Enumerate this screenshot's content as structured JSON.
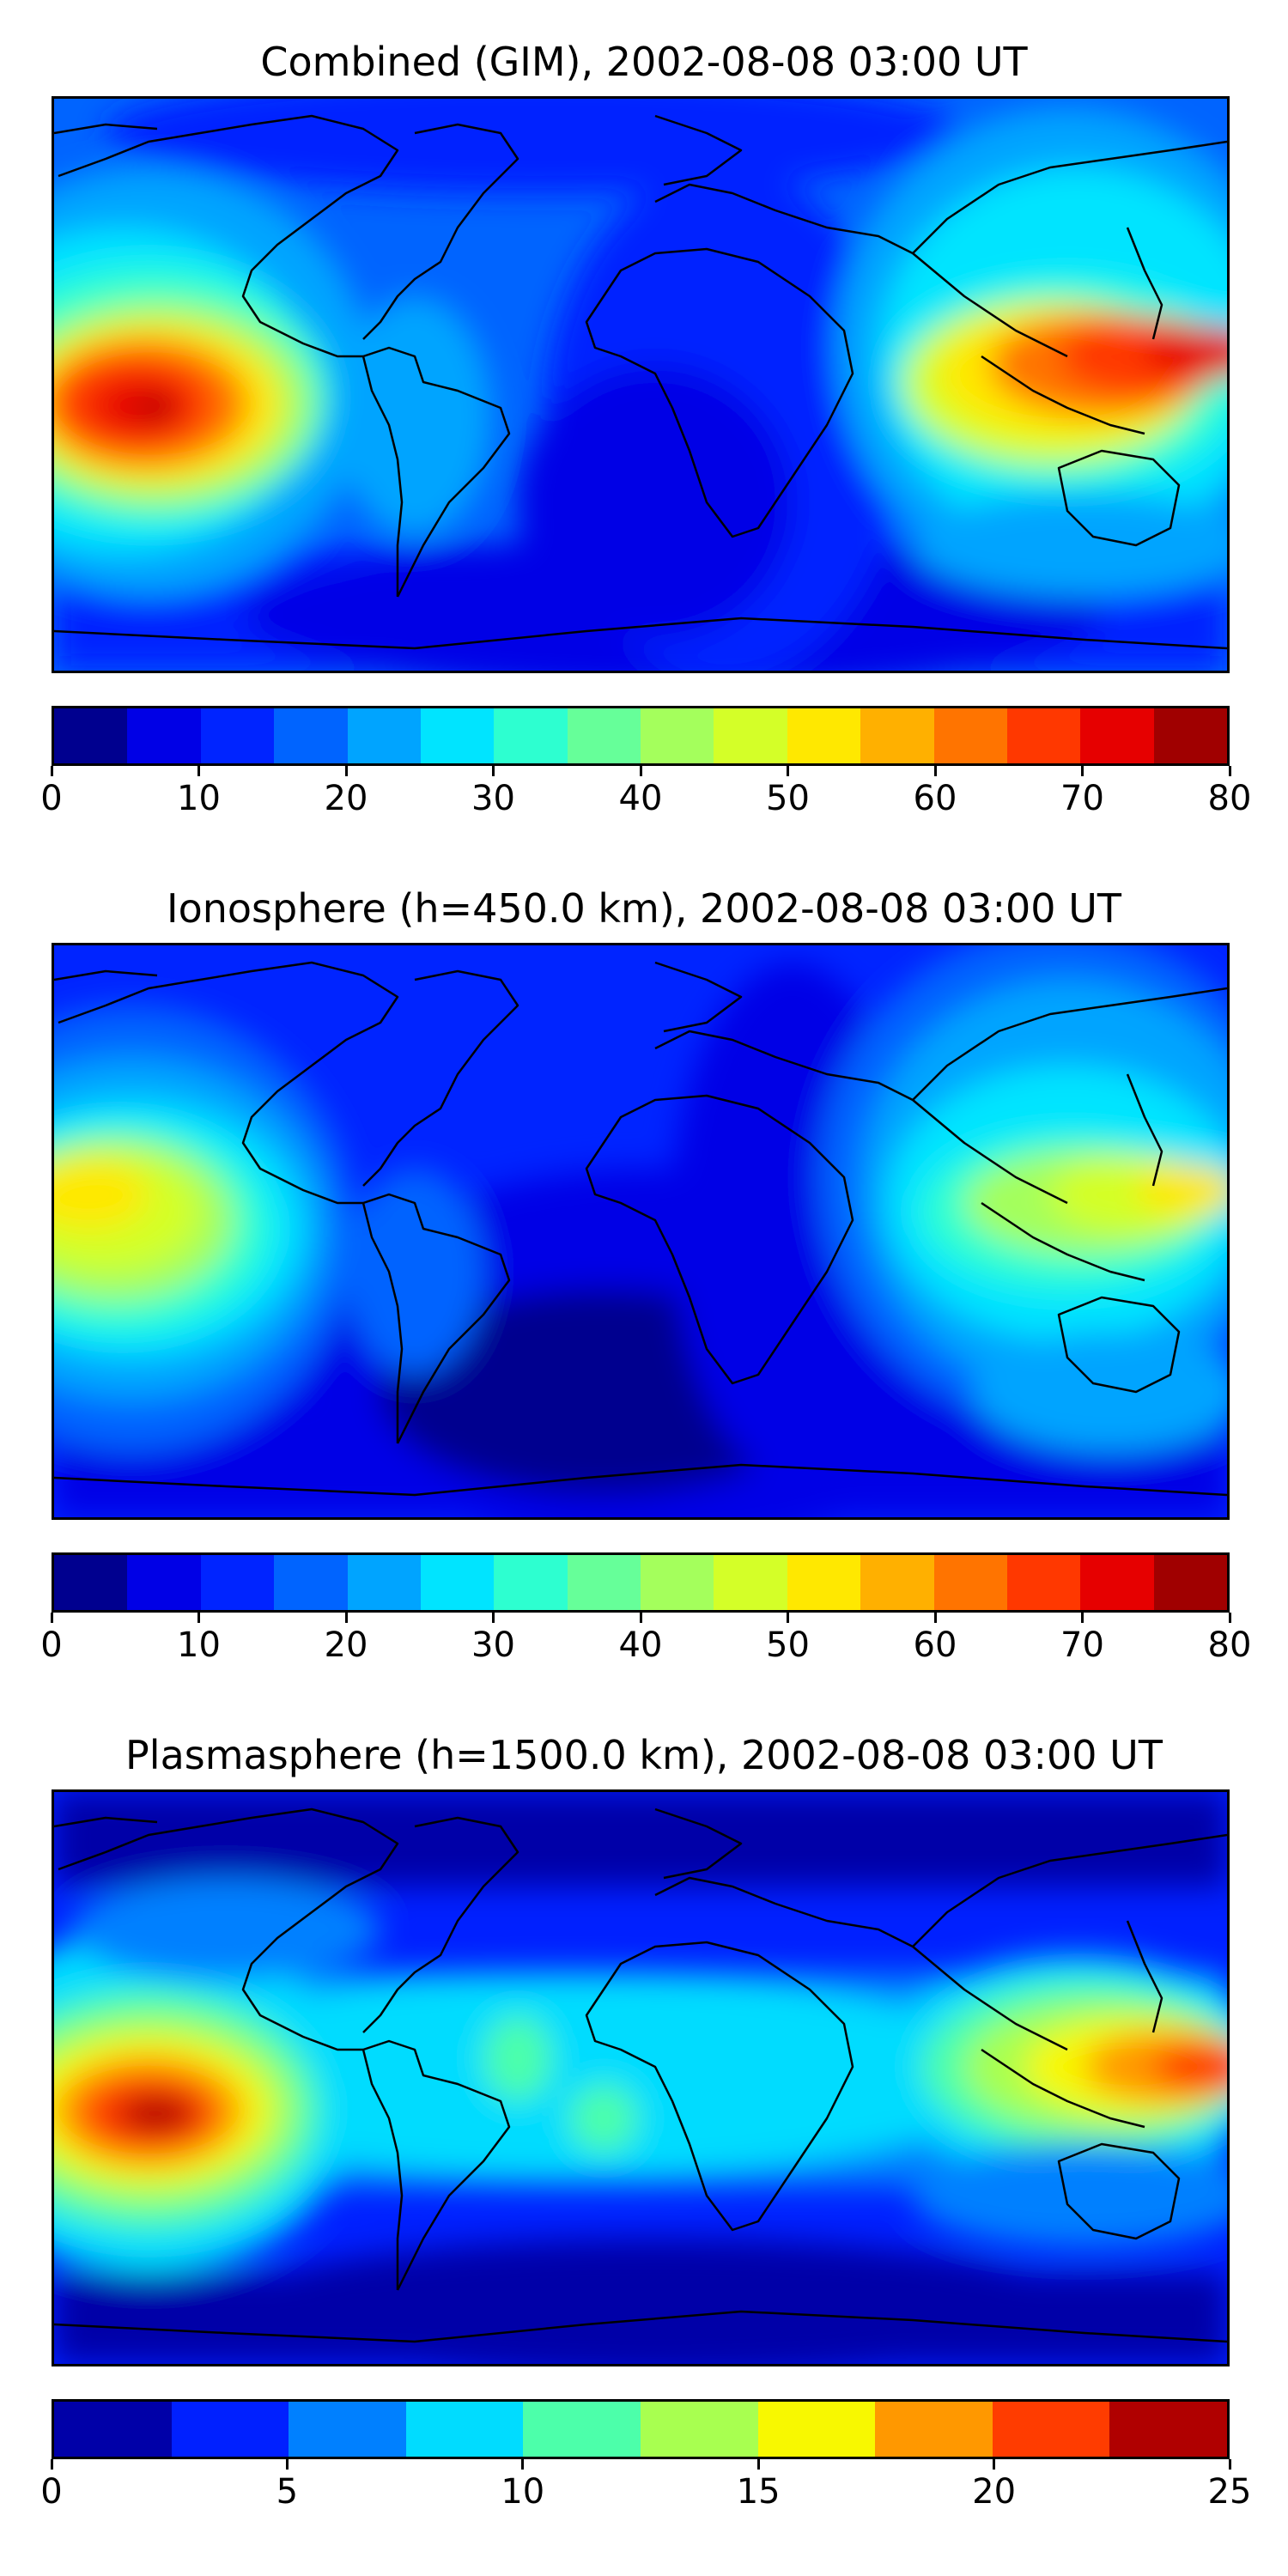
{
  "panels": [
    {
      "title": "Combined (GIM), 2002-08-08 03:00 UT",
      "colorbar": {
        "ticks": [
          "0",
          "10",
          "20",
          "30",
          "40",
          "50",
          "60",
          "70",
          "80"
        ],
        "colors": [
          "#00008f",
          "#0000e6",
          "#0024ff",
          "#0064ff",
          "#00a4ff",
          "#00e4ff",
          "#2dffd0",
          "#66ff99",
          "#a4ff5c",
          "#d4ff28",
          "#ffe800",
          "#ffb000",
          "#ff7400",
          "#ff3800",
          "#e60000",
          "#a00000"
        ]
      }
    },
    {
      "title": "Ionosphere  (h=450.0 km), 2002-08-08 03:00 UT",
      "colorbar": {
        "ticks": [
          "0",
          "10",
          "20",
          "30",
          "40",
          "50",
          "60",
          "70",
          "80"
        ],
        "colors": [
          "#00008f",
          "#0000e6",
          "#0024ff",
          "#0064ff",
          "#00a4ff",
          "#00e4ff",
          "#2dffd0",
          "#66ff99",
          "#a4ff5c",
          "#d4ff28",
          "#ffe800",
          "#ffb000",
          "#ff7400",
          "#ff3800",
          "#e60000",
          "#a00000"
        ]
      }
    },
    {
      "title": "Plasmasphere (h=1500.0 km), 2002-08-08 03:00 UT",
      "colorbar": {
        "ticks": [
          "0",
          "5",
          "10",
          "15",
          "20",
          "25"
        ],
        "colors": [
          "#0000a8",
          "#0020ff",
          "#0080ff",
          "#00dcff",
          "#4cffaa",
          "#a8ff50",
          "#f8f800",
          "#ff9800",
          "#ff3c00",
          "#b00000"
        ]
      }
    }
  ]
}
